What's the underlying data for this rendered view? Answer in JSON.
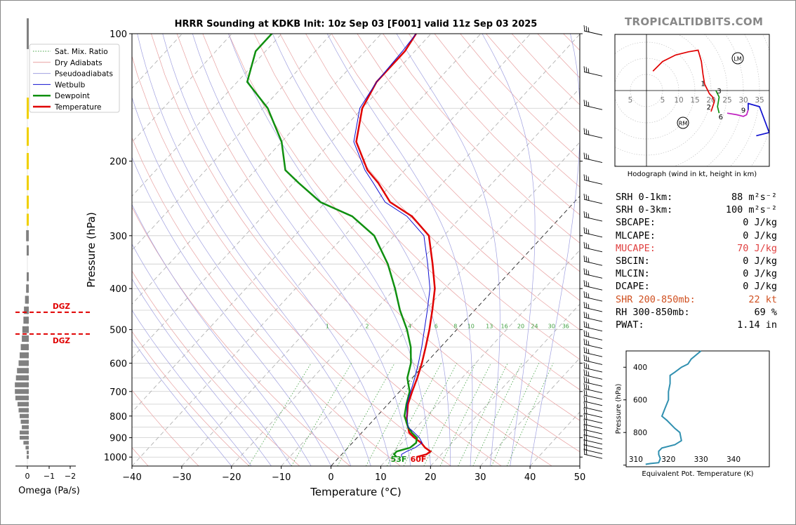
{
  "site": "TROPICALTIDBITS.COM",
  "title": "HRRR Sounding at KDKB Init: 10z Sep 03 [F001] valid 11z Sep 03 2025",
  "colors": {
    "temperature": "#e00000",
    "dewpoint": "#109010",
    "wetbulb": "#1010d0",
    "dgz": "#e00000",
    "theta_e": "#3090b0",
    "omega": "#808080",
    "site": "#888888"
  },
  "chart_data": [
    {
      "type": "line",
      "name": "skewt",
      "xlabel": "Temperature (°C)",
      "ylabel": "Pressure (hPa)",
      "xlim": [
        -40,
        50
      ],
      "ylim": [
        1050,
        100
      ],
      "log_y": true,
      "x_ticks": [
        -40,
        -30,
        -20,
        -10,
        0,
        10,
        20,
        30,
        40,
        50
      ],
      "y_ticks": [
        100,
        200,
        300,
        400,
        500,
        600,
        700,
        800,
        900,
        1000
      ],
      "legend": [
        "Sat. Mix. Ratio",
        "Dry Adiabats",
        "Pseudoadiabats",
        "Wetbulb",
        "Dewpoint",
        "Temperature"
      ],
      "legend_position": "top-left",
      "mixing_ratio_labels": [
        "1",
        "2",
        "4",
        "6",
        "8",
        "10",
        "13",
        "16",
        "20",
        "24",
        "30",
        "36"
      ],
      "surface_labels": {
        "dewpoint": "53F",
        "temperature": "60F"
      },
      "series": [
        {
          "name": "Temperature",
          "points": [
            [
              15.5,
              1000
            ],
            [
              17,
              985
            ],
            [
              17.3,
              970
            ],
            [
              15.5,
              950
            ],
            [
              13.8,
              925
            ],
            [
              11.5,
              900
            ],
            [
              9.5,
              875
            ],
            [
              8.3,
              850
            ],
            [
              6.9,
              825
            ],
            [
              6,
              800
            ],
            [
              4,
              750
            ],
            [
              2.5,
              700
            ],
            [
              1,
              650
            ],
            [
              -0.8,
              600
            ],
            [
              -3,
              550
            ],
            [
              -5.5,
              500
            ],
            [
              -8.5,
              450
            ],
            [
              -12,
              400
            ],
            [
              -17,
              350
            ],
            [
              -23,
              300
            ],
            [
              -30,
              270
            ],
            [
              -37,
              250
            ],
            [
              -43,
              225
            ],
            [
              -47.5,
              210
            ],
            [
              -55,
              180
            ],
            [
              -60,
              150
            ],
            [
              -62,
              130
            ],
            [
              -62,
              110
            ],
            [
              -63,
              100
            ]
          ]
        },
        {
          "name": "Dewpoint",
          "points": [
            [
              11.5,
              1000
            ],
            [
              10.5,
              985
            ],
            [
              10.5,
              970
            ],
            [
              12.5,
              950
            ],
            [
              12.8,
              925
            ],
            [
              12,
              900
            ],
            [
              10,
              875
            ],
            [
              8.3,
              850
            ],
            [
              5.5,
              800
            ],
            [
              3.7,
              750
            ],
            [
              2,
              700
            ],
            [
              -1,
              650
            ],
            [
              -3,
              600
            ],
            [
              -6,
              550
            ],
            [
              -10,
              500
            ],
            [
              -15,
              450
            ],
            [
              -20,
              400
            ],
            [
              -26,
              350
            ],
            [
              -34,
              300
            ],
            [
              -42,
              270
            ],
            [
              -51,
              250
            ],
            [
              -59,
              225
            ],
            [
              -64,
              210
            ],
            [
              -70,
              180
            ],
            [
              -79,
              150
            ],
            [
              -88,
              130
            ],
            [
              -92,
              110
            ],
            [
              -92,
              100
            ]
          ]
        },
        {
          "name": "Wetbulb",
          "points": [
            [
              12.5,
              1000
            ],
            [
              12,
              985
            ],
            [
              12.5,
              970
            ],
            [
              13.5,
              950
            ],
            [
              14,
              925
            ],
            [
              12.5,
              900
            ],
            [
              10.5,
              875
            ],
            [
              8.3,
              850
            ],
            [
              6,
              800
            ],
            [
              3.8,
              750
            ],
            [
              2.2,
              700
            ],
            [
              0.5,
              650
            ],
            [
              -1.5,
              600
            ],
            [
              -3.8,
              550
            ],
            [
              -6.5,
              500
            ],
            [
              -9.5,
              450
            ],
            [
              -13,
              400
            ],
            [
              -18,
              350
            ],
            [
              -24,
              300
            ],
            [
              -31,
              270
            ],
            [
              -38,
              250
            ],
            [
              -44,
              225
            ],
            [
              -48,
              210
            ],
            [
              -55.5,
              180
            ],
            [
              -60.5,
              150
            ],
            [
              -62,
              130
            ],
            [
              -62.5,
              110
            ],
            [
              -63,
              100
            ]
          ]
        }
      ]
    },
    {
      "type": "bar",
      "name": "omega",
      "xlabel": "Omega (Pa/s)",
      "x_ticks": [
        0,
        -1,
        -2
      ],
      "dgz_label": "DGZ",
      "dgz_levels_hpa": [
        455,
        512
      ],
      "values": [
        [
          100,
          0.05
        ],
        [
          150,
          0.1
        ],
        [
          175,
          0.15
        ],
        [
          200,
          0.2
        ],
        [
          225,
          0.15
        ],
        [
          250,
          0.1
        ],
        [
          275,
          0.2
        ],
        [
          300,
          0.25
        ],
        [
          325,
          0.2
        ],
        [
          375,
          0.15
        ],
        [
          400,
          0.25
        ],
        [
          425,
          0.35
        ],
        [
          450,
          0.45
        ],
        [
          475,
          0.5
        ],
        [
          500,
          0.6
        ],
        [
          525,
          0.65
        ],
        [
          550,
          0.75
        ],
        [
          575,
          0.85
        ],
        [
          600,
          0.95
        ],
        [
          625,
          1.1
        ],
        [
          650,
          1.2
        ],
        [
          675,
          1.3
        ],
        [
          700,
          1.3
        ],
        [
          725,
          1.25
        ],
        [
          750,
          1.05
        ],
        [
          775,
          0.95
        ],
        [
          800,
          0.85
        ],
        [
          825,
          0.75
        ],
        [
          850,
          0.65
        ],
        [
          875,
          0.85
        ],
        [
          900,
          0.85
        ],
        [
          925,
          0.5
        ],
        [
          950,
          0.3
        ],
        [
          975,
          0.1
        ],
        [
          1000,
          0.05
        ]
      ]
    },
    {
      "type": "line",
      "name": "hodograph",
      "xlabel": "Hodograph (wind in kt, height in km)",
      "ring_labels": [
        "5",
        "5",
        "10",
        "15",
        "20",
        "25",
        "30",
        "35"
      ],
      "markers": {
        "LM": "LM",
        "RM": "RM"
      },
      "height_labels": [
        "1",
        "2",
        "3",
        "6",
        "9"
      ],
      "segments": [
        {
          "color": "#e00000",
          "points": [
            [
              2,
              6
            ],
            [
              5,
              9
            ],
            [
              9,
              11
            ],
            [
              13,
              12
            ],
            [
              16,
              12.5
            ],
            [
              17,
              9
            ],
            [
              17.5,
              5
            ],
            [
              18,
              2
            ],
            [
              19.5,
              -1
            ],
            [
              20.5,
              -2
            ]
          ]
        },
        {
          "color": "#e00000",
          "points": [
            [
              20.5,
              -2
            ],
            [
              21,
              -3.5
            ],
            [
              20.5,
              -5
            ],
            [
              20,
              -6.5
            ]
          ]
        },
        {
          "color": "#109010",
          "points": [
            [
              21.5,
              0
            ],
            [
              22.5,
              -2
            ],
            [
              22,
              -5
            ],
            [
              22.5,
              -7
            ]
          ]
        },
        {
          "color": "#c020c0",
          "points": [
            [
              25,
              -7
            ],
            [
              28,
              -7.5
            ],
            [
              30,
              -8
            ],
            [
              31,
              -7.5
            ],
            [
              31.5,
              -6
            ]
          ]
        },
        {
          "color": "#1010d0",
          "points": [
            [
              31.5,
              -6
            ],
            [
              31.5,
              -4
            ],
            [
              35,
              -5
            ],
            [
              38,
              -13
            ],
            [
              34,
              -14
            ]
          ]
        }
      ]
    },
    {
      "type": "line",
      "name": "theta_e",
      "xlabel": "Equivalent Pot. Temperature (K)",
      "ylabel": "Pressure (hPa)",
      "x_ticks": [
        310,
        320,
        330,
        340
      ],
      "y_ticks": [
        400,
        600,
        800
      ],
      "xlim": [
        307,
        351
      ],
      "ylim": [
        1010,
        300
      ],
      "points": [
        [
          330,
          300
        ],
        [
          327,
          350
        ],
        [
          326,
          380
        ],
        [
          324,
          400
        ],
        [
          322,
          430
        ],
        [
          320.5,
          450
        ],
        [
          320.5,
          500
        ],
        [
          320,
          550
        ],
        [
          320,
          600
        ],
        [
          319,
          650
        ],
        [
          318,
          700
        ],
        [
          319.5,
          725
        ],
        [
          322,
          775
        ],
        [
          323.5,
          800
        ],
        [
          324,
          850
        ],
        [
          322,
          875
        ],
        [
          318,
          895
        ],
        [
          317,
          915
        ],
        [
          317,
          935
        ],
        [
          317.5,
          960
        ],
        [
          317,
          985
        ],
        [
          314.5,
          990
        ],
        [
          313,
          995
        ]
      ]
    }
  ],
  "stats": [
    {
      "label": "SRH 0-1km:",
      "value": "88",
      "unit": "m²s⁻²",
      "color": "#000"
    },
    {
      "label": "SRH 0-3km:",
      "value": "100",
      "unit": "m²s⁻²",
      "color": "#000"
    },
    {
      "label": "SBCAPE:",
      "value": "0 J/kg",
      "unit": "",
      "color": "#000"
    },
    {
      "label": "MLCAPE:",
      "value": "0 J/kg",
      "unit": "",
      "color": "#000"
    },
    {
      "label": "MUCAPE:",
      "value": "70 J/kg",
      "unit": "",
      "color": "#e04040"
    },
    {
      "label": "SBCIN:",
      "value": "0 J/kg",
      "unit": "",
      "color": "#000"
    },
    {
      "label": "MLCIN:",
      "value": "0 J/kg",
      "unit": "",
      "color": "#000"
    },
    {
      "label": "DCAPE:",
      "value": "0 J/kg",
      "unit": "",
      "color": "#000"
    },
    {
      "label": "SHR 200-850mb:",
      "value": "22 kt",
      "unit": "",
      "color": "#d05020"
    },
    {
      "label": "RH 300-850mb:",
      "value": "69 %",
      "unit": "",
      "color": "#000"
    },
    {
      "label": "PWAT:",
      "value": "1.14 in",
      "unit": "",
      "color": "#000"
    }
  ],
  "barbs_hpa": [
    100,
    125,
    150,
    175,
    200,
    225,
    250,
    275,
    300,
    325,
    350,
    375,
    400,
    425,
    450,
    475,
    500,
    525,
    550,
    575,
    600,
    625,
    650,
    675,
    700,
    725,
    750,
    775,
    800,
    825,
    850,
    875,
    900,
    925,
    950,
    975,
    1000
  ]
}
